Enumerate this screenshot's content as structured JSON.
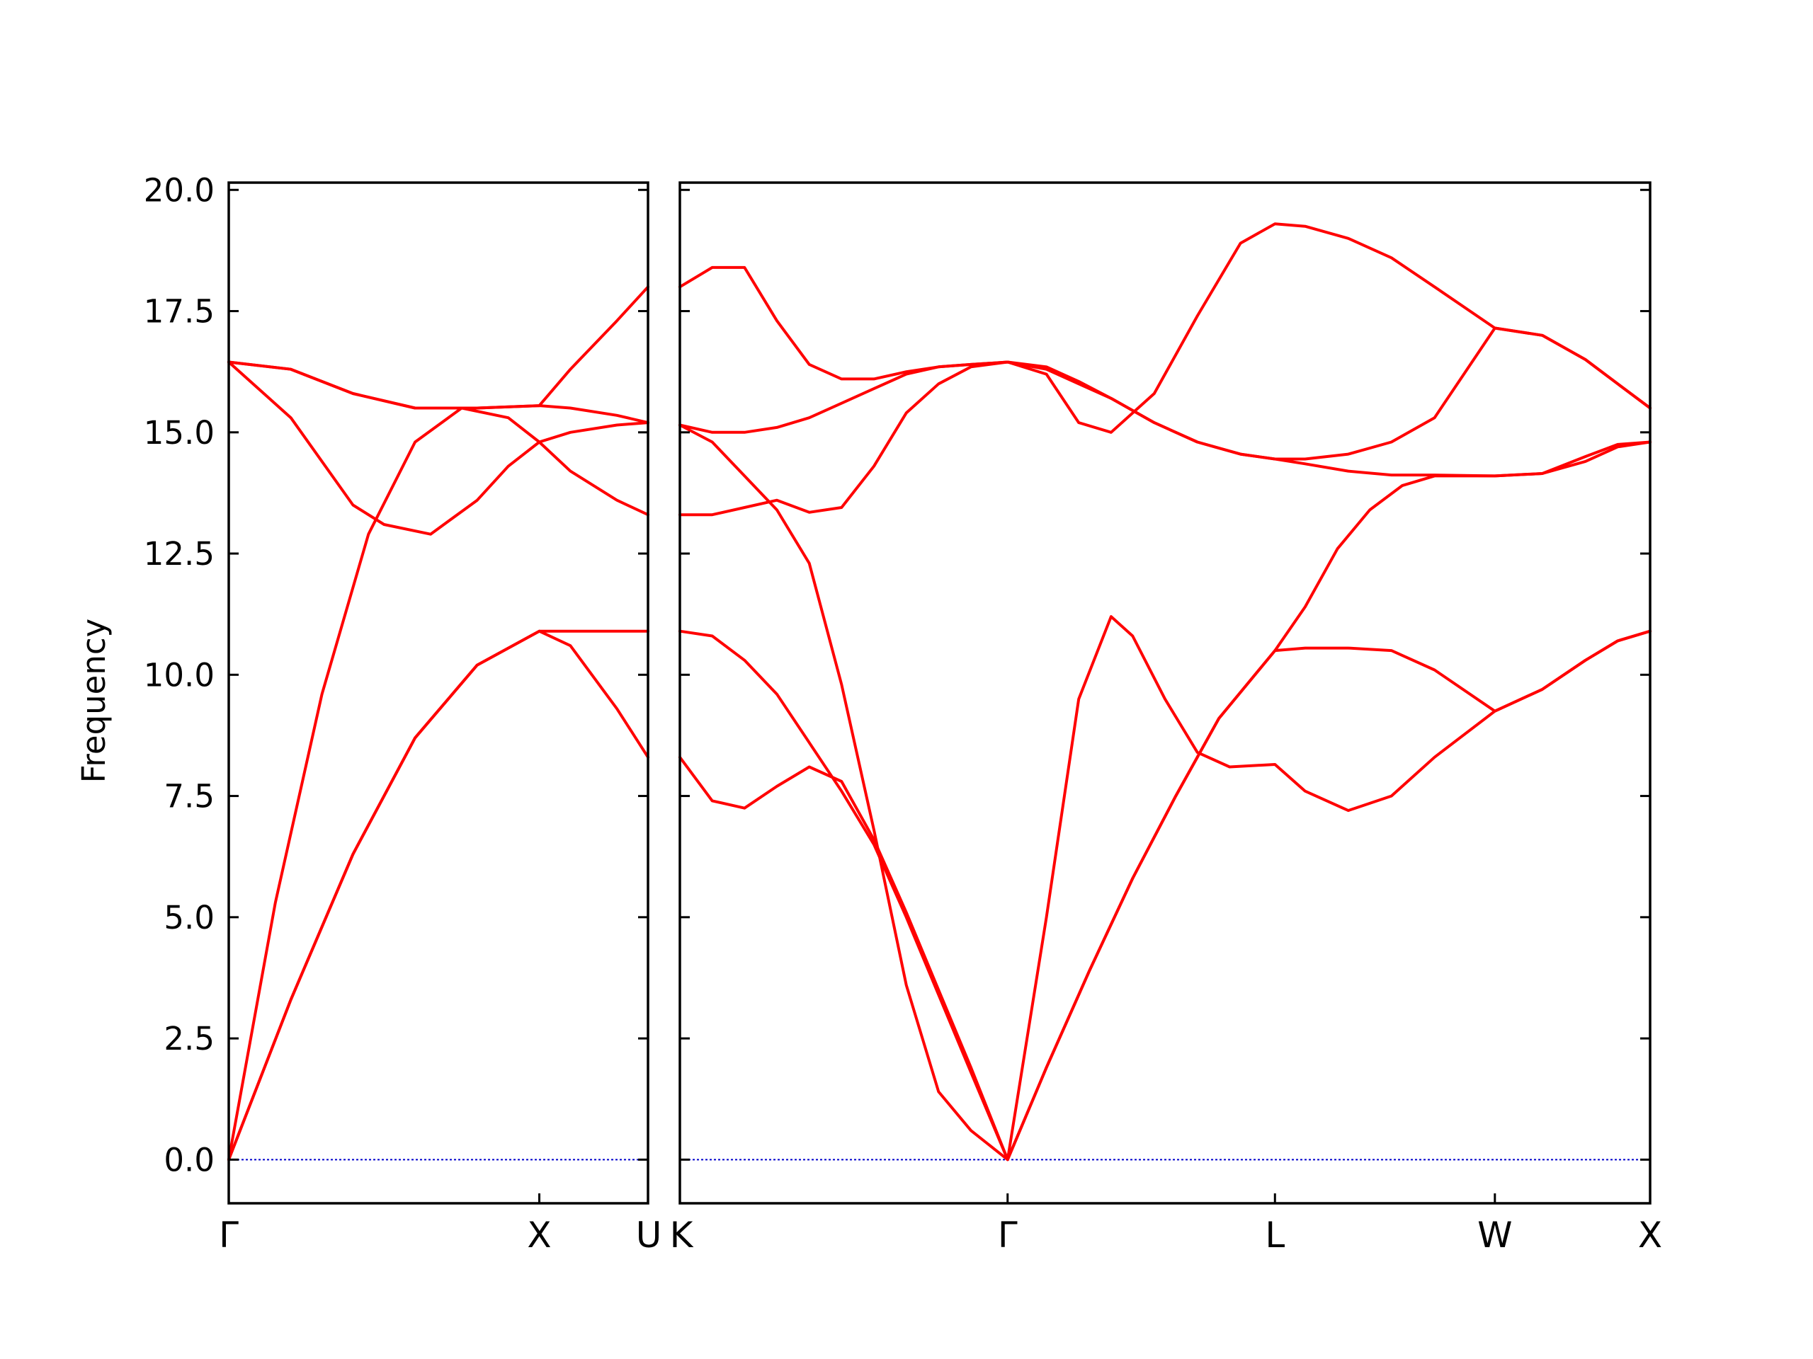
{
  "chart_data": {
    "type": "line",
    "title": "",
    "ylabel": "Frequency",
    "ylim": [
      -0.9,
      20.15
    ],
    "yticks": [
      0.0,
      2.5,
      5.0,
      7.5,
      10.0,
      12.5,
      15.0,
      17.5,
      20.0
    ],
    "ytick_labels": [
      "0.0",
      "2.5",
      "5.0",
      "7.5",
      "10.0",
      "12.5",
      "15.0",
      "17.5",
      "20.0"
    ],
    "line_color": "#ff0000",
    "zero_line_color": "#0000cc",
    "panels": [
      {
        "xlim": [
          0,
          1.35
        ],
        "ticks": [
          {
            "x": 0,
            "label": "Γ"
          },
          {
            "x": 1.0,
            "label": "X"
          },
          {
            "x": 1.35,
            "label": "U"
          }
        ],
        "series": [
          {
            "x": [
              0,
              0.2,
              0.4,
              0.6,
              0.8,
              1.0,
              1.1,
              1.25,
              1.35
            ],
            "y": [
              0.0,
              3.3,
              6.3,
              8.7,
              10.2,
              10.9,
              10.9,
              10.9,
              10.9
            ]
          },
          {
            "x": [
              0,
              0.2,
              0.4,
              0.6,
              0.8,
              1.0,
              1.1,
              1.25,
              1.35
            ],
            "y": [
              0.0,
              3.3,
              6.3,
              8.7,
              10.2,
              10.9,
              10.6,
              9.3,
              8.3
            ]
          },
          {
            "x": [
              0,
              0.15,
              0.3,
              0.45,
              0.6,
              0.75,
              0.9,
              1.0,
              1.1,
              1.25,
              1.35
            ],
            "y": [
              0.0,
              5.3,
              9.6,
              12.9,
              14.8,
              15.5,
              15.3,
              14.8,
              14.2,
              13.6,
              13.3
            ]
          },
          {
            "x": [
              0,
              0.2,
              0.4,
              0.5,
              0.65,
              0.8,
              0.9,
              1.0,
              1.1,
              1.25,
              1.35
            ],
            "y": [
              16.45,
              15.3,
              13.5,
              13.1,
              12.9,
              13.6,
              14.3,
              14.8,
              15.0,
              15.15,
              15.2
            ]
          },
          {
            "x": [
              0,
              0.2,
              0.4,
              0.6,
              0.8,
              1.0,
              1.1,
              1.25,
              1.35
            ],
            "y": [
              16.45,
              16.3,
              15.8,
              15.5,
              15.5,
              15.55,
              15.5,
              15.35,
              15.2
            ]
          },
          {
            "x": [
              0,
              0.2,
              0.4,
              0.6,
              0.8,
              1.0,
              1.1,
              1.25,
              1.35
            ],
            "y": [
              16.45,
              16.3,
              15.8,
              15.5,
              15.5,
              15.55,
              16.3,
              17.3,
              18.0
            ]
          }
        ]
      },
      {
        "xlim": [
          0,
          4.5
        ],
        "ticks": [
          {
            "x": 0,
            "label": "K"
          },
          {
            "x": 1.52,
            "label": "Γ"
          },
          {
            "x": 2.76,
            "label": "L"
          },
          {
            "x": 3.78,
            "label": "W"
          },
          {
            "x": 4.5,
            "label": "X"
          }
        ],
        "series": [
          {
            "x": [
              0,
              0.15,
              0.3,
              0.45,
              0.6,
              0.75,
              0.9,
              1.05,
              1.2,
              1.35,
              1.52,
              1.7,
              1.9,
              2.1,
              2.3,
              2.5,
              2.76,
              2.9,
              3.1,
              3.3,
              3.5,
              3.78,
              4.0,
              4.2,
              4.35,
              4.5
            ],
            "y": [
              8.3,
              7.4,
              7.25,
              7.7,
              8.1,
              7.8,
              6.6,
              5.1,
              3.5,
              1.9,
              0.0,
              1.9,
              3.9,
              5.8,
              7.5,
              9.1,
              10.5,
              10.55,
              10.55,
              10.5,
              10.1,
              9.25,
              9.7,
              10.3,
              10.7,
              10.9
            ]
          },
          {
            "x": [
              0,
              0.15,
              0.3,
              0.45,
              0.6,
              0.75,
              0.9,
              1.05,
              1.2,
              1.35,
              1.52,
              1.7,
              1.9,
              2.1,
              2.3,
              2.5,
              2.76,
              2.9,
              3.05,
              3.2,
              3.35,
              3.5,
              3.78,
              4.0,
              4.2,
              4.35,
              4.5
            ],
            "y": [
              10.9,
              10.8,
              10.3,
              9.6,
              8.6,
              7.6,
              6.5,
              5.0,
              3.4,
              1.8,
              0.0,
              1.9,
              3.9,
              5.8,
              7.5,
              9.1,
              10.5,
              11.4,
              12.6,
              13.4,
              13.9,
              14.1,
              14.1,
              14.15,
              14.5,
              14.75,
              14.8
            ]
          },
          {
            "x": [
              0,
              0.15,
              0.3,
              0.45,
              0.6,
              0.75,
              0.9,
              1.05,
              1.2,
              1.35,
              1.52,
              1.7,
              1.85,
              2.0,
              2.1,
              2.25,
              2.4,
              2.55,
              2.76,
              2.9,
              3.1,
              3.3,
              3.5,
              3.78,
              4.0,
              4.2,
              4.35,
              4.5
            ],
            "y": [
              15.15,
              14.8,
              14.1,
              13.4,
              12.3,
              9.8,
              6.8,
              3.6,
              1.4,
              0.6,
              0.0,
              5.0,
              9.5,
              11.2,
              10.8,
              9.5,
              8.4,
              8.1,
              8.15,
              7.6,
              7.2,
              7.5,
              8.3,
              9.25,
              9.7,
              10.3,
              10.7,
              10.9
            ]
          },
          {
            "x": [
              0,
              0.15,
              0.3,
              0.45,
              0.6,
              0.75,
              0.9,
              1.05,
              1.2,
              1.35,
              1.52,
              1.7,
              1.85,
              2.0,
              2.2,
              2.4,
              2.6,
              2.76,
              2.9,
              3.1,
              3.3,
              3.5,
              3.78,
              4.0,
              4.2,
              4.35,
              4.5
            ],
            "y": [
              13.3,
              13.3,
              13.45,
              13.6,
              13.35,
              13.45,
              14.3,
              15.4,
              16.0,
              16.35,
              16.45,
              16.2,
              15.2,
              15.0,
              15.8,
              17.4,
              18.9,
              19.3,
              19.25,
              19.0,
              18.6,
              18.0,
              17.15,
              17.0,
              16.5,
              16.0,
              15.5
            ]
          },
          {
            "x": [
              0,
              0.15,
              0.3,
              0.45,
              0.6,
              0.75,
              0.9,
              1.05,
              1.2,
              1.35,
              1.52,
              1.7,
              1.85,
              2.0,
              2.2,
              2.4,
              2.6,
              2.76,
              2.9,
              3.1,
              3.3,
              3.5,
              3.78,
              4.0,
              4.2,
              4.35,
              4.5
            ],
            "y": [
              15.15,
              15.0,
              15.0,
              15.1,
              15.3,
              15.6,
              15.9,
              16.2,
              16.35,
              16.4,
              16.45,
              16.3,
              16.0,
              15.7,
              15.2,
              14.8,
              14.55,
              14.45,
              14.45,
              14.55,
              14.8,
              15.3,
              17.15,
              17.0,
              16.5,
              16.0,
              15.5
            ]
          },
          {
            "x": [
              0,
              0.15,
              0.3,
              0.45,
              0.6,
              0.75,
              0.9,
              1.05,
              1.2,
              1.35,
              1.52,
              1.7,
              1.85,
              2.0,
              2.2,
              2.4,
              2.6,
              2.76,
              2.9,
              3.1,
              3.3,
              3.5,
              3.78,
              4.0,
              4.2,
              4.35,
              4.5
            ],
            "y": [
              18.0,
              18.4,
              18.4,
              17.3,
              16.4,
              16.1,
              16.1,
              16.25,
              16.35,
              16.4,
              16.45,
              16.35,
              16.05,
              15.7,
              15.2,
              14.8,
              14.55,
              14.45,
              14.35,
              14.2,
              14.12,
              14.12,
              14.1,
              14.15,
              14.4,
              14.7,
              14.8
            ]
          }
        ]
      }
    ]
  }
}
